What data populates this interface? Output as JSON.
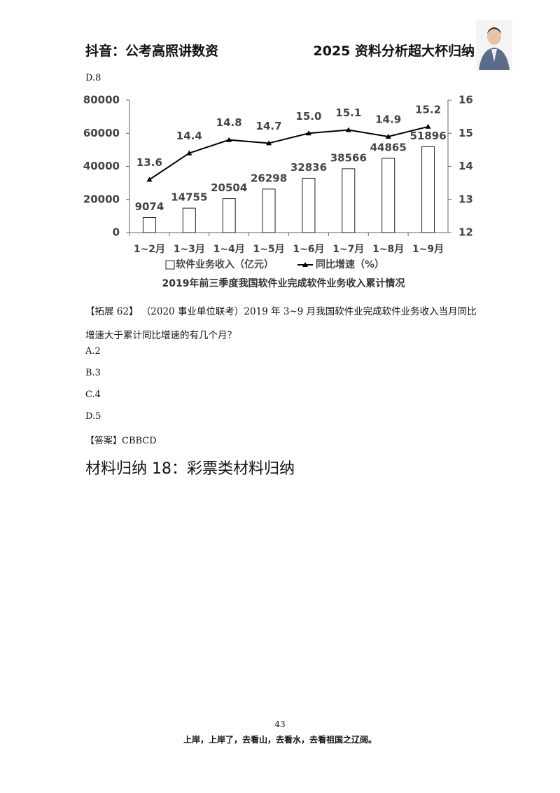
{
  "header": {
    "left": "抖音：公考高照讲数资",
    "right": "2025 资料分析超大杯归纳"
  },
  "prev_option": "D.8",
  "chart_data": {
    "type": "bar",
    "title": "2019年前三季度我国软件业完成软件业务收入累计情况",
    "categories": [
      "1~2月",
      "1~3月",
      "1~4月",
      "1~5月",
      "1~6月",
      "1~7月",
      "1~8月",
      "1~9月"
    ],
    "series": [
      {
        "name": "软件业务收入（亿元）",
        "type": "bar",
        "color": "#ffffff",
        "values": [
          9074,
          14755,
          20504,
          26298,
          32836,
          38566,
          44865,
          51896
        ]
      },
      {
        "name": "同比增速（%）",
        "type": "line",
        "axis": "y2",
        "color": "#000000",
        "values": [
          13.6,
          14.4,
          14.8,
          14.7,
          15.0,
          15.1,
          14.9,
          15.2
        ],
        "value_labels": [
          "13.6",
          "14.4",
          "14.8",
          "14.7",
          "15.0",
          "15.1",
          "14.9",
          "15.2"
        ]
      }
    ],
    "ylim": [
      0,
      80000
    ],
    "yticks": [
      0,
      20000,
      40000,
      60000,
      80000
    ],
    "y2lim": [
      12,
      16
    ],
    "y2ticks": [
      12,
      13,
      14,
      15,
      16
    ],
    "grid": false,
    "legend": "bottom"
  },
  "question": {
    "label": "【拓展 62】",
    "text": "（2020 事业单位联考）2019 年 3~9 月我国软件业完成软件业务收入当月同比增速大于累计同比增速的有几个月？"
  },
  "options": [
    "A.2",
    "B.3",
    "C.4",
    "D.5"
  ],
  "answer": "【答案】CBBCD",
  "section_title": "材料归纳 18：彩票类材料归纳",
  "footer": {
    "page": "43",
    "slogan": "上岸，上岸了，去看山，去看水，去看祖国之辽阔。"
  }
}
